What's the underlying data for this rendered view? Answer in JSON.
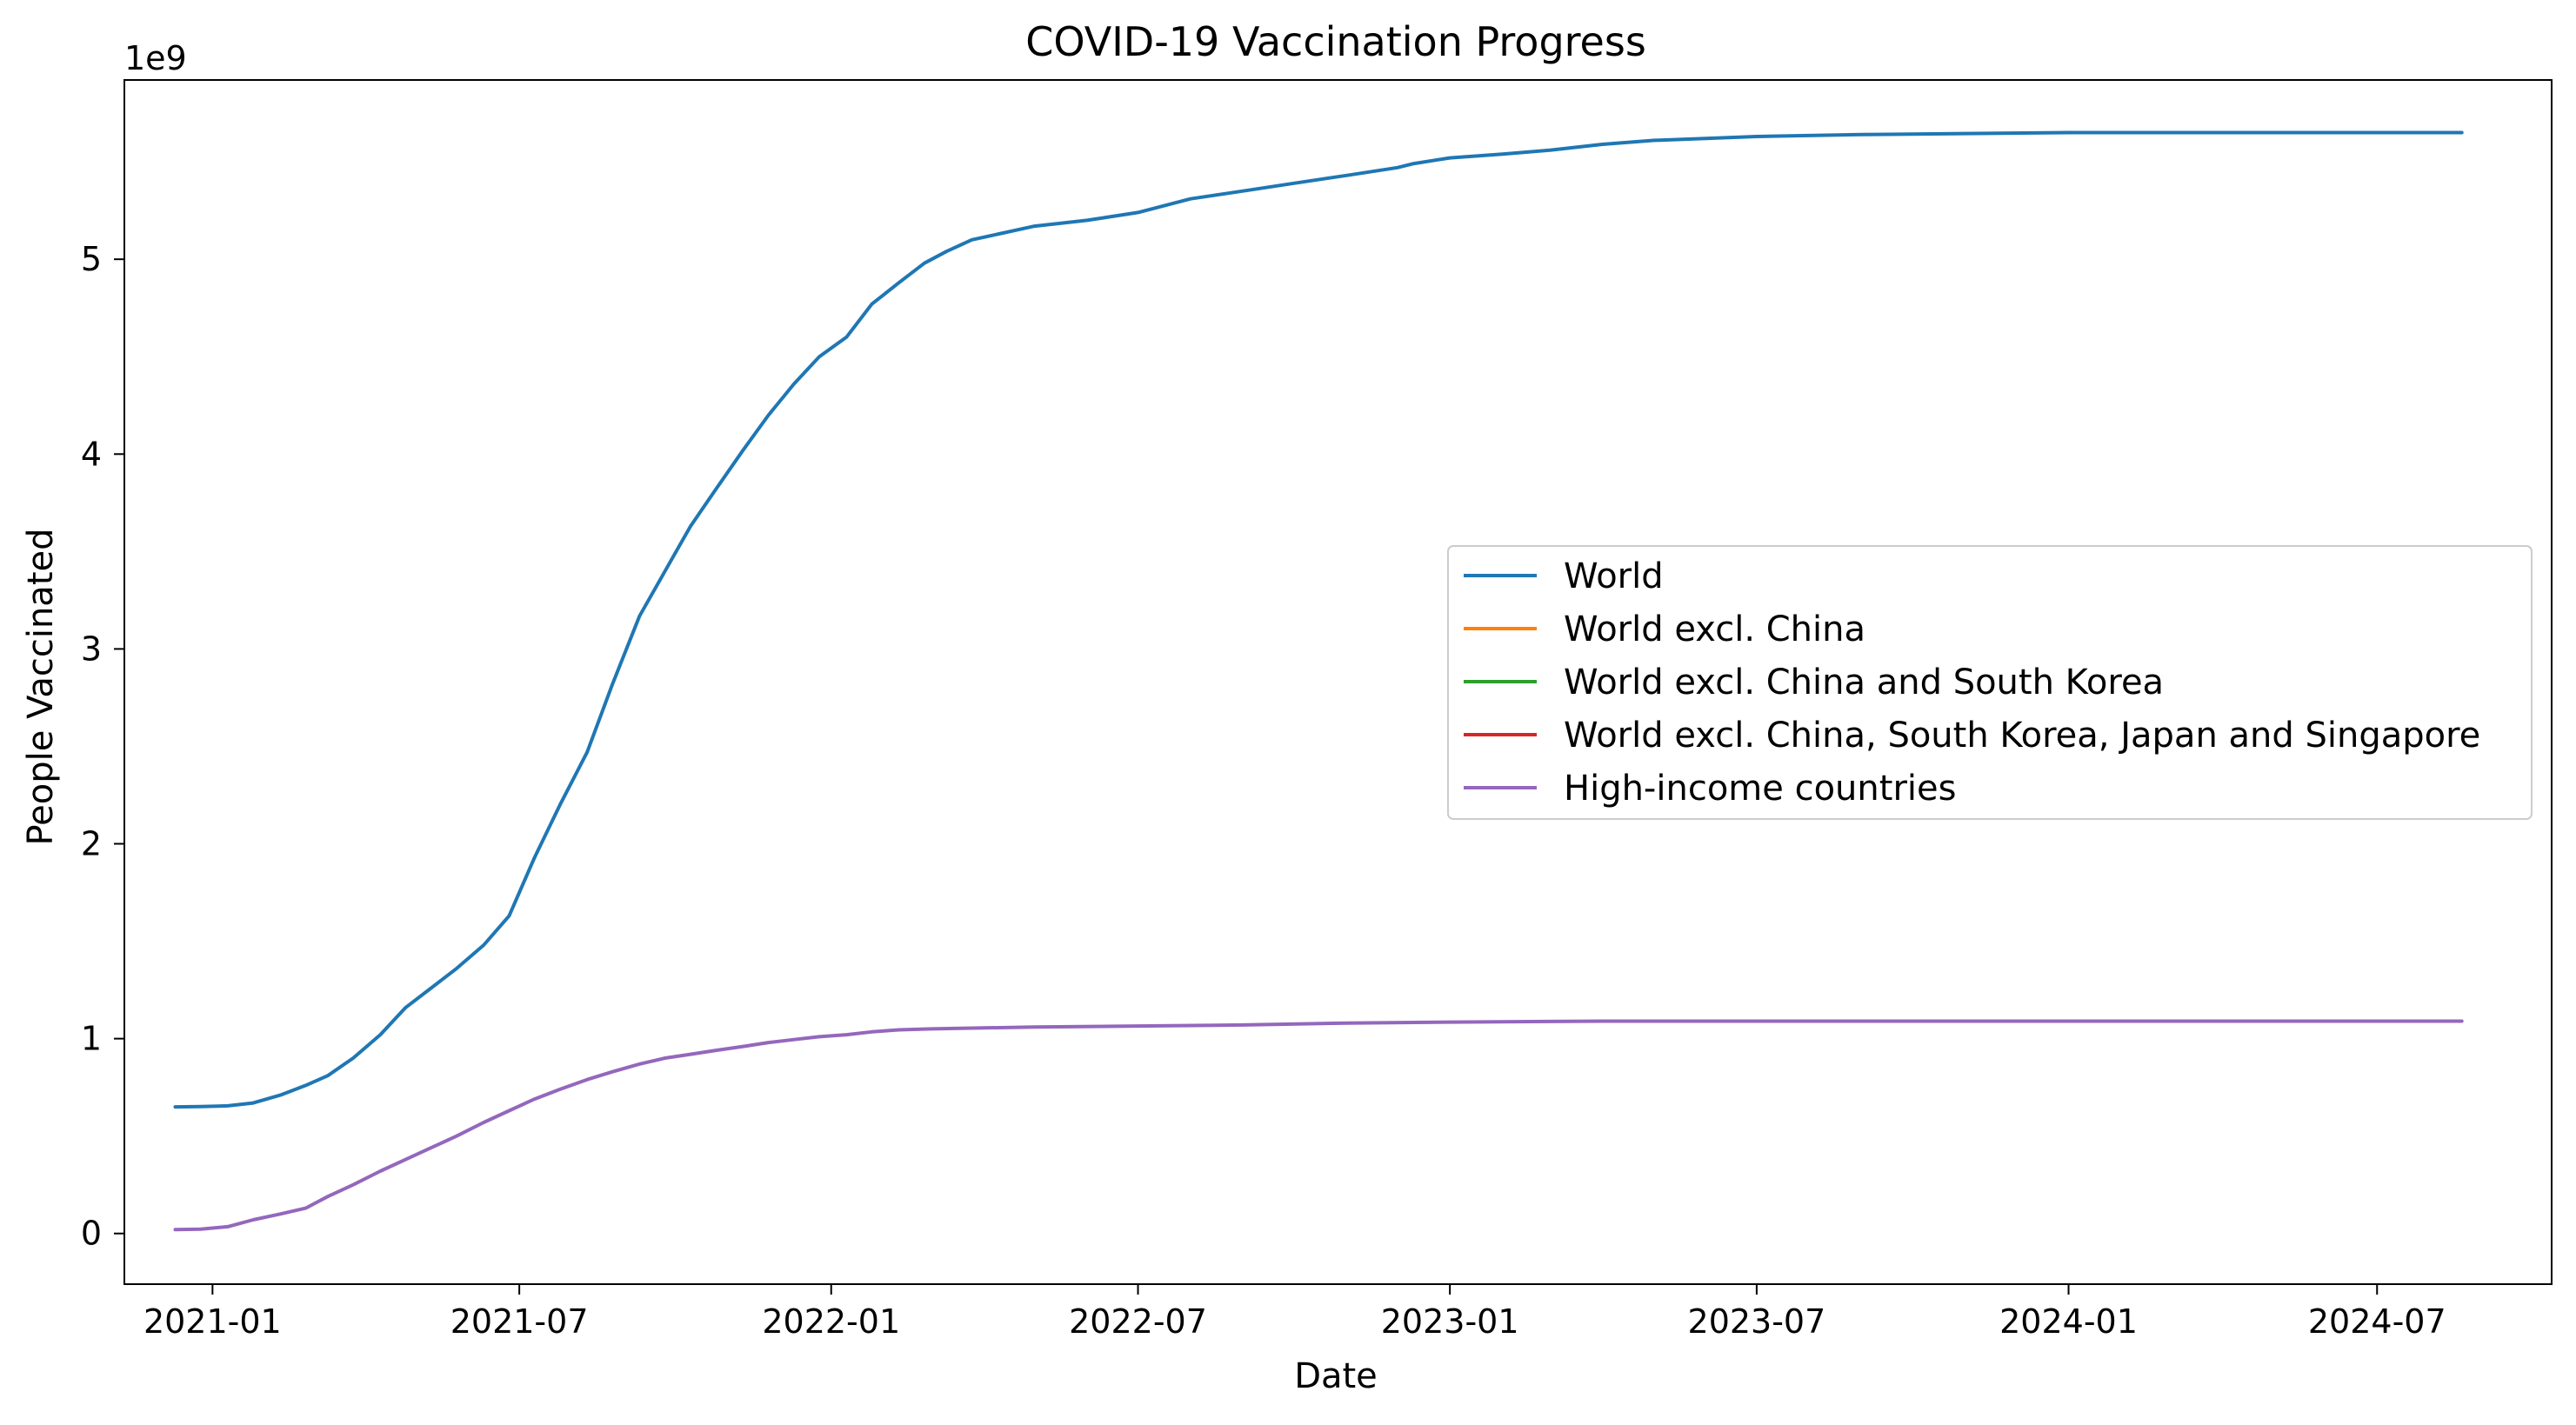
{
  "chart_data": {
    "type": "line",
    "title": "COVID-19 Vaccination Progress",
    "xlabel": "Date",
    "ylabel": "People Vaccinated",
    "y_offset_label": "1e9",
    "x_axis_type": "date",
    "xlim": [
      "2020-11-10",
      "2024-10-12"
    ],
    "ylim": [
      -0.26,
      5.92
    ],
    "y_unit_multiplier": 1000000000,
    "x_ticks": [
      "2021-01",
      "2021-07",
      "2022-01",
      "2022-07",
      "2023-01",
      "2023-07",
      "2024-01",
      "2024-07"
    ],
    "x_tick_dates": [
      "2021-01-01",
      "2021-07-01",
      "2022-01-01",
      "2022-07-01",
      "2023-01-01",
      "2023-07-01",
      "2024-01-01",
      "2024-07-01"
    ],
    "y_ticks": [
      0,
      1,
      2,
      3,
      4,
      5
    ],
    "y_tick_labels": [
      "0",
      "1",
      "2",
      "3",
      "4",
      "5"
    ],
    "grid": false,
    "legend_position": "center-right",
    "series": [
      {
        "name": "World",
        "color": "#1f77b4",
        "x": [
          "2020-12-10",
          "2020-12-25",
          "2021-01-10",
          "2021-01-25",
          "2021-02-10",
          "2021-02-25",
          "2021-03-10",
          "2021-03-25",
          "2021-04-10",
          "2021-04-25",
          "2021-05-10",
          "2021-05-25",
          "2021-06-10",
          "2021-06-25",
          "2021-07-10",
          "2021-07-25",
          "2021-08-10",
          "2021-08-25",
          "2021-09-10",
          "2021-09-25",
          "2021-10-10",
          "2021-10-25",
          "2021-11-10",
          "2021-11-25",
          "2021-12-10",
          "2021-12-25",
          "2022-01-10",
          "2022-01-25",
          "2022-02-10",
          "2022-02-25",
          "2022-03-10",
          "2022-03-25",
          "2022-04-10",
          "2022-05-01",
          "2022-06-01",
          "2022-07-01",
          "2022-08-01",
          "2022-09-01",
          "2022-10-01",
          "2022-11-01",
          "2022-12-01",
          "2022-12-10",
          "2023-01-01",
          "2023-02-01",
          "2023-03-01",
          "2023-04-01",
          "2023-05-01",
          "2023-06-01",
          "2023-07-01",
          "2023-09-01",
          "2023-11-01",
          "2024-01-01",
          "2024-03-01",
          "2024-05-01",
          "2024-07-01",
          "2024-08-20"
        ],
        "y": [
          0.65,
          0.651,
          0.655,
          0.67,
          0.71,
          0.76,
          0.81,
          0.9,
          1.02,
          1.16,
          1.26,
          1.36,
          1.48,
          1.63,
          1.93,
          2.2,
          2.47,
          2.82,
          3.17,
          3.4,
          3.63,
          3.82,
          4.02,
          4.2,
          4.36,
          4.5,
          4.6,
          4.77,
          4.88,
          4.98,
          5.04,
          5.1,
          5.13,
          5.17,
          5.2,
          5.24,
          5.31,
          5.35,
          5.39,
          5.43,
          5.47,
          5.49,
          5.52,
          5.54,
          5.56,
          5.59,
          5.61,
          5.62,
          5.63,
          5.64,
          5.645,
          5.65,
          5.65,
          5.65,
          5.65,
          5.65
        ]
      },
      {
        "name": "World excl. China",
        "color": "#ff7f0e",
        "x": [],
        "y": []
      },
      {
        "name": "World excl. China and South Korea",
        "color": "#2ca02c",
        "x": [],
        "y": []
      },
      {
        "name": "World excl. China, South Korea, Japan and Singapore",
        "color": "#d62728",
        "x": [],
        "y": []
      },
      {
        "name": "High-income countries",
        "color": "#9467bd",
        "x": [
          "2020-12-10",
          "2020-12-25",
          "2021-01-10",
          "2021-01-25",
          "2021-02-10",
          "2021-02-25",
          "2021-03-10",
          "2021-03-25",
          "2021-04-10",
          "2021-04-25",
          "2021-05-10",
          "2021-05-25",
          "2021-06-10",
          "2021-06-25",
          "2021-07-10",
          "2021-07-25",
          "2021-08-10",
          "2021-08-25",
          "2021-09-10",
          "2021-09-25",
          "2021-10-10",
          "2021-10-25",
          "2021-11-10",
          "2021-11-25",
          "2021-12-10",
          "2021-12-25",
          "2022-01-10",
          "2022-01-25",
          "2022-02-10",
          "2022-03-01",
          "2022-04-01",
          "2022-05-01",
          "2022-07-01",
          "2022-09-01",
          "2022-11-01",
          "2023-01-01",
          "2023-04-01",
          "2023-07-01",
          "2024-01-01",
          "2024-08-20"
        ],
        "y": [
          0.02,
          0.022,
          0.035,
          0.07,
          0.1,
          0.13,
          0.19,
          0.25,
          0.32,
          0.38,
          0.44,
          0.5,
          0.57,
          0.63,
          0.69,
          0.74,
          0.79,
          0.83,
          0.87,
          0.9,
          0.92,
          0.94,
          0.96,
          0.98,
          0.995,
          1.01,
          1.02,
          1.035,
          1.045,
          1.05,
          1.055,
          1.06,
          1.065,
          1.07,
          1.08,
          1.085,
          1.09,
          1.09,
          1.09,
          1.09
        ]
      }
    ]
  }
}
